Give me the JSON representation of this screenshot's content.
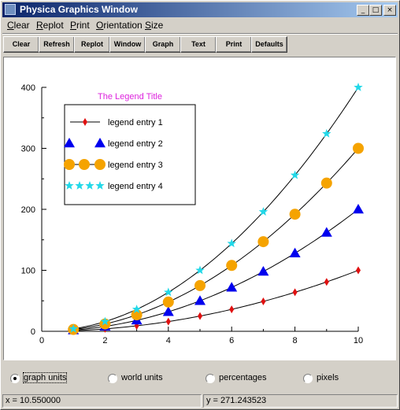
{
  "window": {
    "title": "Physica Graphics Window"
  },
  "menu": [
    {
      "label": "Clear",
      "accel": "C",
      "rest": "lear"
    },
    {
      "label": "Replot",
      "accel": "R",
      "rest": "eplot"
    },
    {
      "label": "Print",
      "accel": "P",
      "rest": "rint"
    },
    {
      "label": "Orientation",
      "accel": "O",
      "rest": "rientation"
    },
    {
      "label": "Size",
      "accel": "S",
      "rest": "ize"
    }
  ],
  "toolbar": [
    "Clear",
    "Refresh",
    "Replot",
    "Window",
    "Graph",
    "Text",
    "Print",
    "Defaults"
  ],
  "chart_data": {
    "type": "line",
    "legend_title": "The Legend Title",
    "legend_title_color": "#dd22dd",
    "xlim": [
      0,
      10
    ],
    "ylim": [
      0,
      400
    ],
    "xticks": [
      0,
      2,
      4,
      6,
      8,
      10
    ],
    "yticks": [
      0,
      100,
      200,
      300,
      400
    ],
    "legend_position": "top-left",
    "grid": false,
    "x": [
      1,
      2,
      3,
      4,
      5,
      6,
      7,
      8,
      9,
      10
    ],
    "series": [
      {
        "name": "legend entry 1",
        "marker": "diamond",
        "color": "#e01010",
        "size": 5,
        "values": [
          1,
          4,
          9,
          16,
          25,
          36,
          49,
          64,
          81,
          100
        ]
      },
      {
        "name": "legend entry 2",
        "marker": "triangle",
        "color": "#0000ee",
        "size": 7,
        "values": [
          2,
          8,
          18,
          32,
          50,
          72,
          98,
          128,
          162,
          200
        ]
      },
      {
        "name": "legend entry 3",
        "marker": "circle",
        "color": "#f5a300",
        "size": 7,
        "values": [
          3,
          12,
          27,
          48,
          75,
          108,
          147,
          192,
          243,
          300
        ]
      },
      {
        "name": "legend entry 4",
        "marker": "star",
        "color": "#22d8e8",
        "size": 6,
        "values": [
          4,
          16,
          36,
          64,
          100,
          144,
          196,
          256,
          324,
          400
        ]
      }
    ]
  },
  "units": {
    "options": [
      "graph units",
      "world units",
      "percentages",
      "pixels"
    ],
    "selected": "graph units"
  },
  "status": {
    "x": "x = 10.550000",
    "y": "y = 271.243523"
  }
}
